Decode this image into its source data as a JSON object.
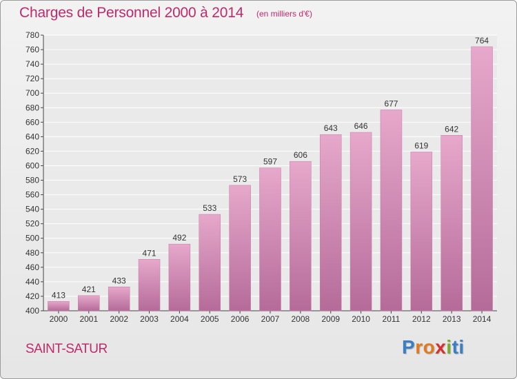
{
  "header": {
    "title": "Charges de Personnel 2000 à 2014",
    "subtitle": "(en milliers d'€)"
  },
  "footer": {
    "commune": "SAINT-SATUR",
    "logo_text": "Proxiti",
    "logo_letters": [
      "P",
      "r",
      "o",
      "x",
      "i",
      "t",
      "i"
    ],
    "logo_colors": [
      "#3a7fc4",
      "#e07a1f",
      "#e07a1f",
      "#d62f2f",
      "#7aac2c",
      "#3a7fc4",
      "#3a7fc4"
    ]
  },
  "colors": {
    "accent": "#c0296a",
    "bar_top": "#e6a8cb",
    "bar_bottom": "#b56b99"
  },
  "chart_data": {
    "type": "bar",
    "title": "Charges de Personnel 2000 à 2014",
    "subtitle": "(en milliers d'€)",
    "categories": [
      "2000",
      "2001",
      "2002",
      "2003",
      "2004",
      "2005",
      "2006",
      "2007",
      "2008",
      "2009",
      "2010",
      "2011",
      "2012",
      "2013",
      "2014"
    ],
    "values": [
      413,
      421,
      433,
      471,
      492,
      533,
      573,
      597,
      606,
      643,
      646,
      677,
      619,
      642,
      764
    ],
    "ylim": [
      400,
      780
    ],
    "yticks": [
      400,
      420,
      440,
      460,
      480,
      500,
      520,
      540,
      560,
      580,
      600,
      620,
      640,
      660,
      680,
      700,
      720,
      740,
      760,
      780
    ],
    "grid": true,
    "legend": "none"
  }
}
